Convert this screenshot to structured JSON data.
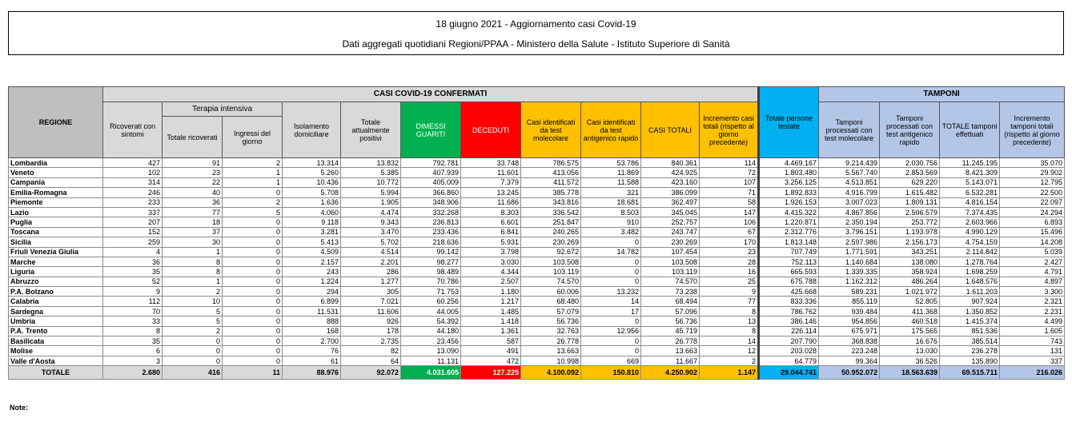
{
  "header": {
    "title": "18 giugno 2021 - Aggiornamento casi Covid-19",
    "subtitle": "Dati aggregati quotidiani Regioni/PPAA - Ministero della Salute - Istituto Superiore di Sanità"
  },
  "table": {
    "groups": {
      "confirmed": "CASI COVID-19 CONFERMATI",
      "intensive": "Terapia intensiva",
      "tests": "TAMPONI"
    },
    "columns": [
      "REGIONE",
      "Ricoverati con sintomi",
      "Totale ricoverati",
      "Ingressi del giorno",
      "Isolamento domiciliare",
      "Totale attualmente positivi",
      "DIMESSI GUARITI",
      "DECEDUTI",
      "Casi identificati da test molecolare",
      "Casi identificati da test antigenico rapido",
      "CASI TOTALI",
      "Incremento casi totali (rispetto al giorno precedente)",
      "Totale persone testate",
      "Tamponi processati con test molecolare",
      "Tamponi processati con test antigenico rapido",
      "TOTALE tamponi effettuati",
      "Incremento tamponi totali (rispetto al giorno precedente)"
    ],
    "rows": [
      [
        "Lombardia",
        "427",
        "91",
        "2",
        "13.314",
        "13.832",
        "792.781",
        "33.748",
        "786.575",
        "53.786",
        "840.361",
        "114",
        "4.469.167",
        "9.214.439",
        "2.030.756",
        "11.245.195",
        "35.070"
      ],
      [
        "Veneto",
        "102",
        "23",
        "1",
        "5.260",
        "5.385",
        "407.939",
        "11.601",
        "413.056",
        "11.869",
        "424.925",
        "72",
        "1.803.480",
        "5.567.740",
        "2.853.569",
        "8.421.309",
        "29.902"
      ],
      [
        "Campania",
        "314",
        "22",
        "1",
        "10.436",
        "10.772",
        "405.009",
        "7.379",
        "411.572",
        "11.588",
        "423.160",
        "107",
        "3.256.125",
        "4.513.851",
        "629.220",
        "5.143.071",
        "12.795"
      ],
      [
        "Emilia-Romagna",
        "246",
        "40",
        "0",
        "5.708",
        "5.994",
        "366.860",
        "13.245",
        "385.778",
        "321",
        "386.099",
        "71",
        "1.892.833",
        "4.916.799",
        "1.615.482",
        "6.532.281",
        "22.500"
      ],
      [
        "Piemonte",
        "233",
        "36",
        "2",
        "1.636",
        "1.905",
        "348.906",
        "11.686",
        "343.816",
        "18.681",
        "362.497",
        "58",
        "1.926.153",
        "3.007.023",
        "1.809.131",
        "4.816.154",
        "22.097"
      ],
      [
        "Lazio",
        "337",
        "77",
        "5",
        "4.060",
        "4.474",
        "332.268",
        "8.303",
        "336.542",
        "8.503",
        "345.045",
        "147",
        "4.415.322",
        "4.867.856",
        "2.506.579",
        "7.374.435",
        "24.294"
      ],
      [
        "Puglia",
        "207",
        "18",
        "0",
        "9.118",
        "9.343",
        "236.813",
        "6.601",
        "251.847",
        "910",
        "252.757",
        "106",
        "1.220.871",
        "2.350.194",
        "253.772",
        "2.603.966",
        "6.893"
      ],
      [
        "Toscana",
        "152",
        "37",
        "0",
        "3.281",
        "3.470",
        "233.436",
        "6.841",
        "240.265",
        "3.482",
        "243.747",
        "67",
        "2.312.776",
        "3.796.151",
        "1.193.978",
        "4.990.129",
        "15.496"
      ],
      [
        "Sicilia",
        "259",
        "30",
        "0",
        "5.413",
        "5.702",
        "218.636",
        "5.931",
        "230.269",
        "0",
        "230.269",
        "170",
        "1.813.148",
        "2.597.986",
        "2.156.173",
        "4.754.159",
        "14.208"
      ],
      [
        "Friuli Venezia Giulia",
        "4",
        "1",
        "0",
        "4.509",
        "4.514",
        "99.142",
        "3.798",
        "92.672",
        "14.782",
        "107.454",
        "23",
        "707.749",
        "1.771.591",
        "343.251",
        "2.114.842",
        "5.039"
      ],
      [
        "Marche",
        "36",
        "8",
        "0",
        "2.157",
        "2.201",
        "98.277",
        "3.030",
        "103.508",
        "0",
        "103.508",
        "28",
        "752.113",
        "1.140.684",
        "138.080",
        "1.278.764",
        "2.427"
      ],
      [
        "Liguria",
        "35",
        "8",
        "0",
        "243",
        "286",
        "98.489",
        "4.344",
        "103.119",
        "0",
        "103.119",
        "16",
        "665.593",
        "1.339.335",
        "358.924",
        "1.698.259",
        "4.791"
      ],
      [
        "Abruzzo",
        "52",
        "1",
        "0",
        "1.224",
        "1.277",
        "70.786",
        "2.507",
        "74.570",
        "0",
        "74.570",
        "25",
        "675.788",
        "1.162.312",
        "486.264",
        "1.648.576",
        "4.897"
      ],
      [
        "P.A. Bolzano",
        "9",
        "2",
        "0",
        "294",
        "305",
        "71.753",
        "1.180",
        "60.006",
        "13.232",
        "73.238",
        "9",
        "425.668",
        "589.231",
        "1.021.972",
        "1.611.203",
        "3.300"
      ],
      [
        "Calabria",
        "112",
        "10",
        "0",
        "6.899",
        "7.021",
        "60.256",
        "1.217",
        "68.480",
        "14",
        "68.494",
        "77",
        "833.336",
        "855.119",
        "52.805",
        "907.924",
        "2.321"
      ],
      [
        "Sardegna",
        "70",
        "5",
        "0",
        "11.531",
        "11.606",
        "44.005",
        "1.485",
        "57.079",
        "17",
        "57.096",
        "8",
        "786.762",
        "939.484",
        "411.368",
        "1.350.852",
        "2.231"
      ],
      [
        "Umbria",
        "33",
        "5",
        "0",
        "888",
        "926",
        "54.392",
        "1.418",
        "56.736",
        "0",
        "56.736",
        "13",
        "386.146",
        "954.856",
        "460.518",
        "1.415.374",
        "4.499"
      ],
      [
        "P.A. Trento",
        "8",
        "2",
        "0",
        "168",
        "178",
        "44.180",
        "1.361",
        "32.763",
        "12.956",
        "45.719",
        "8",
        "226.114",
        "675.971",
        "175.565",
        "851.536",
        "1.605"
      ],
      [
        "Basilicata",
        "35",
        "0",
        "0",
        "2.700",
        "2.735",
        "23.456",
        "587",
        "26.778",
        "0",
        "26.778",
        "14",
        "207.790",
        "368.838",
        "16.676",
        "385.514",
        "743"
      ],
      [
        "Molise",
        "6",
        "0",
        "0",
        "76",
        "82",
        "13.090",
        "491",
        "13.663",
        "0",
        "13.663",
        "12",
        "203.028",
        "223.248",
        "13.030",
        "236.278",
        "131"
      ],
      [
        "Valle d'Aosta",
        "3",
        "0",
        "0",
        "61",
        "64",
        "11.131",
        "472",
        "10.998",
        "669",
        "11.667",
        "2",
        "64.779",
        "99.364",
        "36.526",
        "135.890",
        "337"
      ]
    ],
    "total": [
      "TOTALE",
      "2.680",
      "416",
      "11",
      "88.976",
      "92.072",
      "4.031.605",
      "127.225",
      "4.100.092",
      "150.810",
      "4.250.902",
      "1.147",
      "29.044.741",
      "50.952.072",
      "18.563.639",
      "69.515.711",
      "216.026"
    ]
  },
  "note": "Note:"
}
